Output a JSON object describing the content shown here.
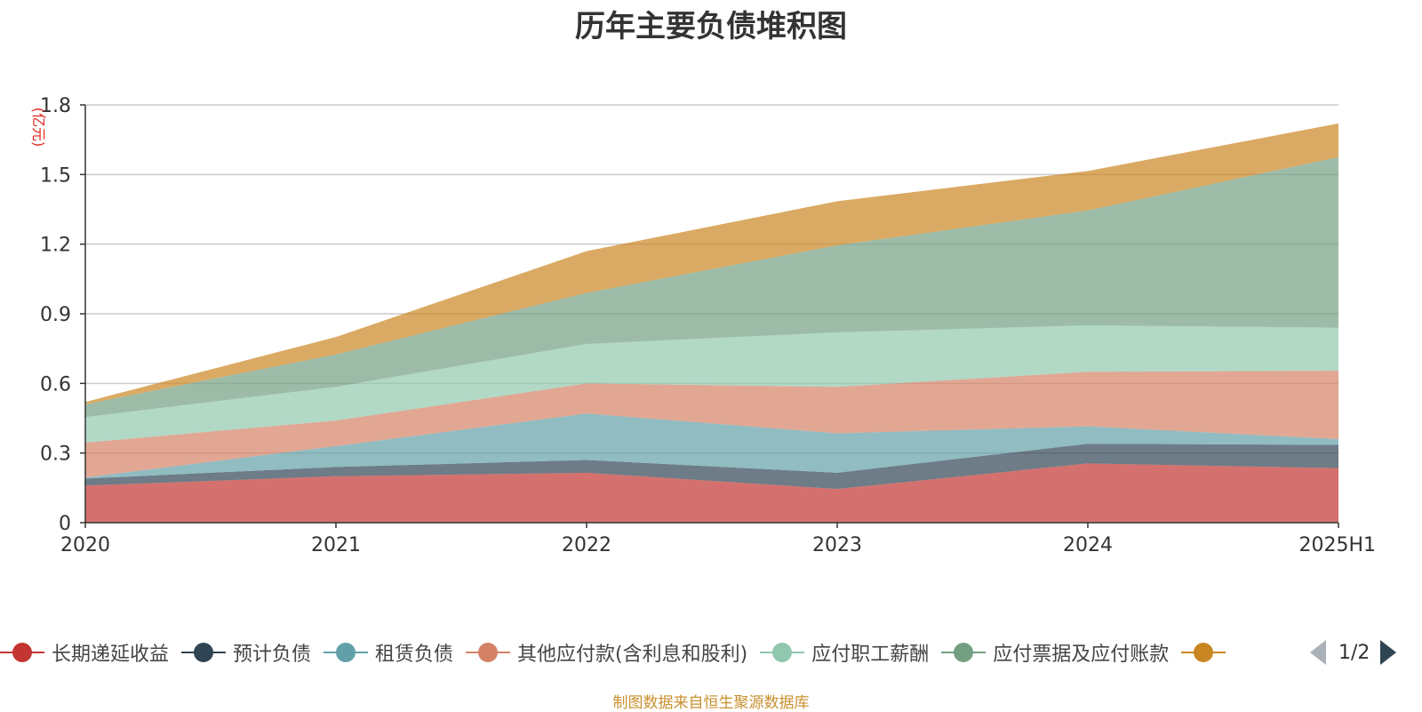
{
  "chart_data": {
    "type": "area",
    "stacked": true,
    "title": "历年主要负债堆积图",
    "ylabel": "(亿元)",
    "xlabel": "",
    "categories": [
      "2020",
      "2021",
      "2022",
      "2023",
      "2024",
      "2025H1"
    ],
    "ylim": [
      0,
      1.8
    ],
    "yticks": [
      "0",
      "0.3",
      "0.6",
      "0.9",
      "1.2",
      "1.5",
      "1.8"
    ],
    "grid": true,
    "legend_position": "bottom",
    "series": [
      {
        "name": "长期递延收益",
        "color": "#c23531",
        "values": [
          0.16,
          0.2,
          0.215,
          0.145,
          0.255,
          0.235
        ]
      },
      {
        "name": "预计负债",
        "color": "#2f4554",
        "values": [
          0.03,
          0.04,
          0.055,
          0.07,
          0.085,
          0.1
        ]
      },
      {
        "name": "租赁负债",
        "color": "#61a0a8",
        "values": [
          0.005,
          0.09,
          0.2,
          0.17,
          0.075,
          0.025
        ]
      },
      {
        "name": "其他应付款(含利息和股利)",
        "color": "#d48265",
        "values": [
          0.15,
          0.11,
          0.13,
          0.2,
          0.235,
          0.295
        ]
      },
      {
        "name": "应付职工薪酬",
        "color": "#91c7ae",
        "values": [
          0.11,
          0.145,
          0.17,
          0.235,
          0.2,
          0.185
        ]
      },
      {
        "name": "应付票据及应付账款",
        "color": "#749f83",
        "values": [
          0.055,
          0.14,
          0.22,
          0.375,
          0.495,
          0.735
        ]
      },
      {
        "name": "",
        "color": "#ca8622",
        "values": [
          0.01,
          0.075,
          0.18,
          0.19,
          0.17,
          0.145
        ]
      }
    ]
  },
  "legend": {
    "page_label": "1/2"
  },
  "footer": {
    "source": "制图数据来自恒生聚源数据库"
  },
  "colors": {
    "axis_label": "#e0261c",
    "grid": "#cccccc",
    "axis_text": "#333333"
  },
  "icons": {
    "prev": "triangle-left-icon",
    "next": "triangle-right-icon"
  }
}
